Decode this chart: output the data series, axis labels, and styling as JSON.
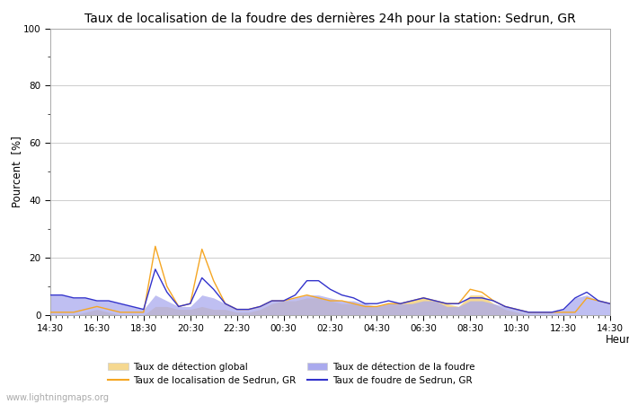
{
  "title": "Taux de localisation de la foudre des dernières 24h pour la station: Sedrun, GR",
  "xlabel": "Heure",
  "ylabel": "Pourcent  [%]",
  "watermark": "www.lightningmaps.org",
  "ylim": [
    0,
    100
  ],
  "time_labels": [
    "14:30",
    "16:30",
    "18:30",
    "20:30",
    "22:30",
    "00:30",
    "02:30",
    "04:30",
    "06:30",
    "08:30",
    "10:30",
    "12:30",
    "14:30"
  ],
  "x_values": [
    0,
    2,
    4,
    6,
    8,
    10,
    12,
    14,
    16,
    18,
    20,
    22,
    24,
    26,
    28,
    30,
    32,
    34,
    36,
    38,
    40,
    42,
    44,
    46,
    48,
    50,
    52,
    54,
    56,
    58,
    60,
    62,
    64,
    66,
    68,
    70,
    72,
    74,
    76,
    78,
    80,
    82,
    84,
    86,
    88,
    90,
    92,
    94,
    96
  ],
  "orange_line": [
    1,
    1,
    1,
    2,
    3,
    2,
    1,
    1,
    1,
    24,
    10,
    3,
    4,
    23,
    12,
    4,
    2,
    2,
    3,
    5,
    5,
    6,
    7,
    6,
    5,
    5,
    4,
    3,
    3,
    4,
    4,
    5,
    6,
    5,
    4,
    4,
    9,
    8,
    5,
    3,
    2,
    1,
    1,
    1,
    1,
    1,
    6,
    5,
    4
  ],
  "blue_line": [
    7,
    7,
    6,
    6,
    5,
    5,
    4,
    3,
    2,
    16,
    8,
    3,
    4,
    13,
    9,
    4,
    2,
    2,
    3,
    5,
    5,
    7,
    12,
    12,
    9,
    7,
    6,
    4,
    4,
    5,
    4,
    5,
    6,
    5,
    4,
    4,
    6,
    6,
    5,
    3,
    2,
    1,
    1,
    1,
    2,
    6,
    8,
    5,
    4
  ],
  "orange_fill": [
    0,
    0,
    0,
    1,
    2,
    1,
    0,
    0,
    0,
    3,
    3,
    2,
    2,
    3,
    2,
    2,
    1,
    1,
    2,
    4,
    5,
    5,
    6,
    6,
    5,
    4,
    4,
    3,
    3,
    4,
    4,
    5,
    6,
    5,
    4,
    3,
    7,
    7,
    4,
    2,
    1,
    0,
    0,
    0,
    0,
    0,
    0,
    0,
    0
  ],
  "blue_fill": [
    7,
    7,
    6,
    6,
    5,
    5,
    4,
    3,
    2,
    7,
    5,
    3,
    3,
    7,
    6,
    4,
    2,
    2,
    3,
    5,
    5,
    6,
    7,
    7,
    6,
    5,
    5,
    4,
    3,
    4,
    4,
    4,
    5,
    5,
    3,
    3,
    5,
    5,
    4,
    3,
    2,
    1,
    1,
    1,
    2,
    6,
    7,
    5,
    4
  ],
  "orange_line_color": "#f5a623",
  "blue_line_color": "#3333cc",
  "background_color": "#ffffff",
  "grid_color": "#cccccc",
  "title_fontsize": 10,
  "yticks": [
    0,
    20,
    40,
    60,
    80,
    100
  ],
  "ytick_minor": [
    10,
    30,
    50,
    70,
    90
  ]
}
